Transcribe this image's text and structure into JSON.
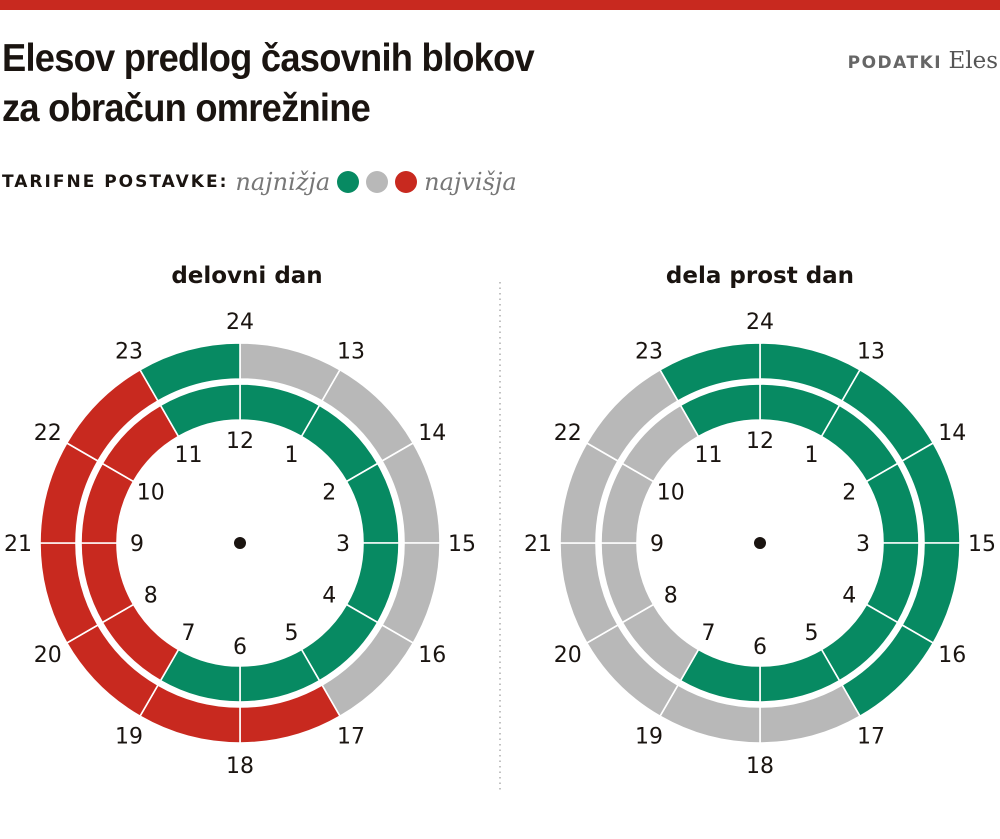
{
  "header": {
    "title_line1": "Elesov predlog časovnih blokov",
    "title_line2": "za obračun omrežnine",
    "source_label": "PODATKI",
    "source_value": "Eles"
  },
  "legend": {
    "label": "TARIFNE POSTAVKE:",
    "low_label": "najnižja",
    "high_label": "najvišja",
    "levels": [
      "low",
      "mid",
      "high"
    ]
  },
  "colors": {
    "accent": "#c8291f",
    "low": "#078a62",
    "mid": "#b8b8b8",
    "high": "#c8291f"
  },
  "chart_data": [
    {
      "type": "radial-clock",
      "title": "delovni dan",
      "inner_labels": [
        "12",
        "1",
        "2",
        "3",
        "4",
        "5",
        "6",
        "7",
        "8",
        "9",
        "10",
        "11"
      ],
      "outer_labels": [
        "24",
        "13",
        "14",
        "15",
        "16",
        "17",
        "18",
        "19",
        "20",
        "21",
        "22",
        "23"
      ],
      "hourly_levels": [
        "low",
        "low",
        "low",
        "low",
        "low",
        "low",
        "low",
        "high",
        "high",
        "high",
        "high",
        "low",
        "mid",
        "mid",
        "mid",
        "mid",
        "mid",
        "high",
        "high",
        "high",
        "high",
        "high",
        "high",
        "low"
      ]
    },
    {
      "type": "radial-clock",
      "title": "dela prost dan",
      "inner_labels": [
        "12",
        "1",
        "2",
        "3",
        "4",
        "5",
        "6",
        "7",
        "8",
        "9",
        "10",
        "11"
      ],
      "outer_labels": [
        "24",
        "13",
        "14",
        "15",
        "16",
        "17",
        "18",
        "19",
        "20",
        "21",
        "22",
        "23"
      ],
      "hourly_levels": [
        "low",
        "low",
        "low",
        "low",
        "low",
        "low",
        "low",
        "mid",
        "mid",
        "mid",
        "mid",
        "low",
        "low",
        "low",
        "low",
        "low",
        "low",
        "mid",
        "mid",
        "mid",
        "mid",
        "mid",
        "mid",
        "low"
      ]
    }
  ]
}
